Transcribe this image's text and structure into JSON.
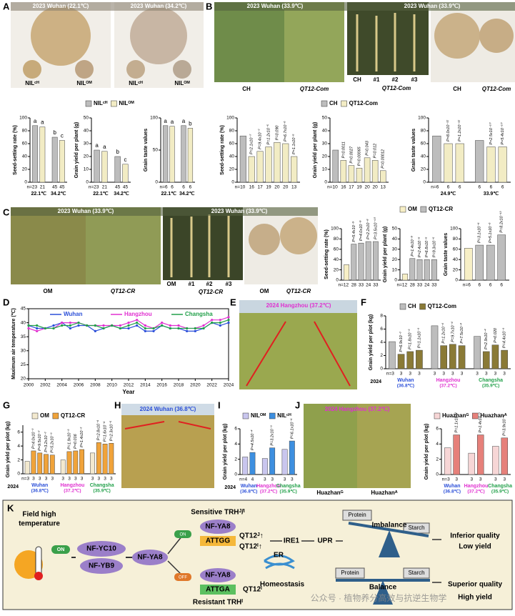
{
  "panel_labels": [
    "A",
    "B",
    "C",
    "D",
    "E",
    "F",
    "G",
    "H",
    "I",
    "J",
    "K"
  ],
  "photos": {
    "A": {
      "titles": [
        "2023 Wuhan (22.1℃)",
        "2023 Wuhan (34.2℃)"
      ],
      "labels": [
        "NILᶜᴴ",
        "NILᴼᴹ",
        "NILᶜᴴ",
        "NILᴼᴹ"
      ]
    },
    "B": {
      "titles": [
        "2023 Wuhan (33.9℃)",
        "2023 Wuhan (33.9℃)"
      ],
      "labels": [
        "CH",
        "QT12-Com",
        "CH",
        "#1",
        "#2",
        "#3",
        "QT12-Com",
        "CH",
        "QT12-Com"
      ]
    },
    "C": {
      "titles": [
        "2023 Wuhan (33.9℃)",
        "2023 Wuhan (33.9℃)"
      ],
      "labels": [
        "OM",
        "QT12-CR",
        "OM",
        "#1",
        "#2",
        "#3",
        "QT12-CR",
        "OM",
        "QT12-CR"
      ]
    },
    "E": {
      "title": "2024 Hangzhou (37.2℃)"
    },
    "H": {
      "title": "2024 Wuhan (36.8℃)"
    },
    "J": {
      "title": "2024 Hangzhou (37.2℃)",
      "labels": [
        "Huazhanᴳ",
        "Huazhanᴬ"
      ]
    }
  },
  "chart_data": [
    {
      "type": "bar",
      "ylabel": "Seed-setting rate (%)",
      "ylim": [
        0,
        100
      ],
      "yticks": [
        0,
        20,
        40,
        60,
        80,
        100
      ],
      "values": [
        88,
        86,
        70,
        65
      ],
      "colors": [
        "#bdbdbd",
        "#f2ecc4",
        "#bdbdbd",
        "#f2ecc4"
      ],
      "annotations": [
        "a",
        "a",
        "b",
        "c"
      ],
      "annotation_style": "plain",
      "n_labels": [
        "n=23",
        "21",
        "45",
        "45"
      ],
      "categories": [
        "22.1℃",
        null,
        "34.2℃",
        null
      ],
      "legend": [
        {
          "name": "NILᶜᴴ",
          "color": "#bdbdbd"
        },
        {
          "name": "NILᴼᴹ",
          "color": "#f2ecc4"
        }
      ]
    },
    {
      "type": "bar",
      "ylabel": "Grain yield per plant (g)",
      "ylim": [
        0,
        50
      ],
      "yticks": [
        0,
        10,
        20,
        30,
        40,
        50
      ],
      "values": [
        25,
        24,
        20,
        14
      ],
      "colors": [
        "#bdbdbd",
        "#f2ecc4",
        "#bdbdbd",
        "#f2ecc4"
      ],
      "annotations": [
        "a",
        "a",
        "b",
        "c"
      ],
      "annotation_style": "plain",
      "n_labels": [
        "n=23",
        "21",
        "45",
        "45"
      ],
      "categories": [
        "22.1℃",
        null,
        "34.2℃",
        null
      ]
    },
    {
      "type": "bar",
      "ylabel": "Grain taste values",
      "ylim": [
        0,
        100
      ],
      "yticks": [
        0,
        50,
        100
      ],
      "values": [
        88,
        87,
        88,
        84
      ],
      "colors": [
        "#bdbdbd",
        "#f2ecc4",
        "#bdbdbd",
        "#f2ecc4"
      ],
      "annotations": [
        "a",
        "a",
        "a",
        "b"
      ],
      "annotation_style": "plain",
      "n_labels": [
        "n=6",
        "6",
        "6",
        "6"
      ],
      "categories": [
        "22.1℃",
        null,
        "34.2℃",
        null
      ]
    },
    {
      "type": "bar",
      "ylabel": "Seed-setting rate (%)",
      "ylim": [
        0,
        100
      ],
      "yticks": [
        0,
        20,
        40,
        60,
        80,
        100
      ],
      "values": [
        72,
        40,
        48,
        55,
        62,
        60,
        40
      ],
      "colors": [
        "#bdbdbd",
        "#f2ecc4",
        "#f2ecc4",
        "#f2ecc4",
        "#f2ecc4",
        "#f2ecc4",
        "#f2ecc4"
      ],
      "annotations": [
        null,
        "P=2.1x10⁻⁷",
        "P=9.4x10⁻⁷",
        "P=1.2x10⁻⁵",
        "P=0.090",
        "P=6.7x10⁻⁶",
        "P=1.1x10⁻⁵"
      ],
      "annotation_style": "rotated",
      "n_labels": [
        "n=10",
        "16",
        "17",
        "19",
        "20",
        "20",
        "13"
      ],
      "legend": [
        {
          "name": "CH",
          "color": "#bdbdbd"
        },
        {
          "name": "QT12-Com",
          "color": "#f2ecc4"
        }
      ]
    },
    {
      "type": "bar",
      "ylabel": "Grain yield per plant (g)",
      "ylim": [
        0,
        50
      ],
      "yticks": [
        0,
        10,
        20,
        30,
        40,
        50
      ],
      "values": [
        25,
        17,
        13,
        11,
        19,
        17,
        9
      ],
      "colors": [
        "#bdbdbd",
        "#f2ecc4",
        "#f2ecc4",
        "#f2ecc4",
        "#f2ecc4",
        "#f2ecc4",
        "#f2ecc4"
      ],
      "annotations": [
        null,
        "P=0.0011",
        "P=0.0027",
        "P=0.00065",
        "P=0.043",
        "P=0.012",
        "P=0.00012"
      ],
      "annotation_style": "rotated",
      "n_labels": [
        "n=10",
        "16",
        "17",
        "19",
        "20",
        "20",
        "13"
      ]
    },
    {
      "type": "bar",
      "ylabel": "Grain taste values",
      "ylim": [
        0,
        100
      ],
      "yticks": [
        0,
        20,
        40,
        60,
        80,
        100
      ],
      "values": [
        72,
        60,
        60,
        65,
        55,
        55
      ],
      "colors": [
        "#bdbdbd",
        "#f2ecc4",
        "#f2ecc4",
        "#bdbdbd",
        "#f2ecc4",
        "#f2ecc4"
      ],
      "annotations": [
        null,
        "P=8.0x10⁻¹²",
        "P=1.2x10⁻¹²",
        null,
        "P=2.5x10⁻¹⁰",
        "P=5.4x10⁻¹⁰"
      ],
      "annotation_style": "rotated",
      "n_labels": [
        "n=6",
        "6",
        "6",
        "6",
        "6",
        "6"
      ],
      "categories": [
        "24.9℃",
        null,
        null,
        "33.9℃",
        null,
        null
      ]
    },
    {
      "type": "bar",
      "ylabel": "Seed-setting rate (%)",
      "ylim": [
        0,
        100
      ],
      "yticks": [
        0,
        20,
        40,
        60,
        80,
        100
      ],
      "values": [
        30,
        70,
        72,
        75,
        75
      ],
      "colors": [
        "#f7efc6",
        "#bdbdbd",
        "#bdbdbd",
        "#bdbdbd",
        "#bdbdbd"
      ],
      "annotations": [
        null,
        "P=5.4x10⁻⁹",
        "P=4.0x10⁻⁹",
        "P=2.2x10⁻⁸",
        "P=3.5x10⁻¹⁰"
      ],
      "annotation_style": "rotated",
      "n_labels": [
        "n=12",
        "28",
        "33",
        "24",
        "33"
      ],
      "legend": [
        {
          "name": "OM",
          "color": "#f7efc6"
        },
        {
          "name": "QT12-CR",
          "color": "#bdbdbd"
        }
      ]
    },
    {
      "type": "bar",
      "ylabel": "Grain yield per plant (g)",
      "ylim": [
        0,
        50
      ],
      "yticks": [
        0,
        10,
        20,
        30,
        40,
        50
      ],
      "values": [
        6,
        21,
        20,
        20,
        20
      ],
      "colors": [
        "#f7efc6",
        "#bdbdbd",
        "#bdbdbd",
        "#bdbdbd",
        "#bdbdbd"
      ],
      "annotations": [
        null,
        "P=1.4x10⁻⁹",
        "P=2.4x10⁻⁵",
        "P=6.8x10⁻⁵",
        "P=9.3x10⁻⁵"
      ],
      "annotation_style": "rotated",
      "n_labels": [
        "n=12",
        "28",
        "33",
        "24",
        "33"
      ]
    },
    {
      "type": "bar",
      "ylabel": "Grain taste values",
      "ylim": [
        0,
        100
      ],
      "yticks": [
        0,
        20,
        40,
        60,
        80,
        100
      ],
      "values": [
        62,
        68,
        68,
        88
      ],
      "colors": [
        "#f7efc6",
        "#bdbdbd",
        "#bdbdbd",
        "#bdbdbd"
      ],
      "annotations": [
        null,
        "P=3.1x10⁻⁶",
        "P=5.1x10⁻⁶",
        "P=8.2x10⁻¹³"
      ],
      "annotation_style": "rotated",
      "n_labels": [
        "n=6",
        "6",
        "6",
        "6"
      ]
    },
    {
      "type": "line",
      "ylabel": "Maximum air temperature (℃)",
      "xlabel": "Year",
      "xlim": [
        2000,
        2024
      ],
      "xticks": [
        2000,
        2002,
        2004,
        2006,
        2008,
        2010,
        2012,
        2014,
        2016,
        2018,
        2020,
        2022,
        2024
      ],
      "ylim": [
        20,
        45
      ],
      "yticks": [
        20,
        25,
        30,
        35,
        40,
        45
      ],
      "x": [
        2000,
        2001,
        2002,
        2003,
        2004,
        2005,
        2006,
        2007,
        2008,
        2009,
        2010,
        2011,
        2012,
        2013,
        2014,
        2015,
        2016,
        2017,
        2018,
        2019,
        2020,
        2021,
        2022,
        2023,
        2024
      ],
      "series": [
        {
          "name": "Wuhan",
          "color": "#2b4fd8",
          "values": [
            39,
            38,
            38,
            39,
            40,
            38,
            39,
            39,
            37,
            38,
            39,
            38,
            38,
            39,
            37,
            37,
            39,
            38,
            38,
            37,
            37,
            38,
            40,
            39,
            40
          ]
        },
        {
          "name": "Hangzhou",
          "color": "#e030d0",
          "values": [
            38,
            37,
            38,
            38,
            40,
            40,
            40,
            39,
            39,
            39,
            39,
            39,
            40,
            41,
            39,
            38,
            40,
            39,
            39,
            38,
            38,
            39,
            41,
            41,
            42
          ]
        },
        {
          "name": "Changsha",
          "color": "#22a04a",
          "values": [
            39,
            39,
            38,
            38,
            39,
            39,
            40,
            39,
            39,
            38,
            39,
            38,
            39,
            40,
            38,
            38,
            39,
            38,
            38,
            38,
            38,
            38,
            40,
            40,
            41
          ]
        }
      ]
    },
    {
      "type": "bar",
      "ylabel": "Grain yield per plot (kg)",
      "ylim": [
        0,
        8
      ],
      "yticks": [
        0,
        2,
        4,
        6,
        8
      ],
      "values": [
        4.1,
        2.2,
        2.6,
        2.8,
        6.5,
        3.5,
        3.7,
        3.5,
        4.9,
        2.6,
        3.6,
        2.8
      ],
      "colors": [
        "#bdbdbd",
        "#8a7a36",
        "#8a7a36",
        "#8a7a36",
        "#bdbdbd",
        "#8a7a36",
        "#8a7a36",
        "#8a7a36",
        "#bdbdbd",
        "#8a7a36",
        "#8a7a36",
        "#8a7a36"
      ],
      "annotations": [
        null,
        "P=6.9x10⁻³",
        "P=1.8x10⁻³",
        "P=1.1x10⁻³",
        null,
        "P=1.2x10⁻⁴",
        "P=9.7x10⁻⁴",
        "P=7.5x10⁻⁴",
        null,
        "P=2.9x10⁻⁴",
        "P=0.020",
        "P=4.4x10⁻³"
      ],
      "annotation_style": "rotated",
      "n_labels": [
        "n=3",
        "3",
        "3",
        "3",
        "3",
        "3",
        "3",
        "3",
        "3",
        "3",
        "3",
        "3"
      ],
      "categories": [
        "Wuhan",
        null,
        null,
        null,
        "Hangzhou",
        null,
        null,
        null,
        "Changsha",
        null,
        null,
        null
      ],
      "subcategories": [
        "(36.8℃)",
        null,
        null,
        null,
        "(37.2℃)",
        null,
        null,
        null,
        "(35.9℃)",
        null,
        null,
        null
      ],
      "category_colors": [
        "#2b4fd8",
        null,
        null,
        null,
        "#e030d0",
        null,
        null,
        null,
        "#22a04a",
        null,
        null,
        null
      ],
      "row_label": "2024",
      "legend": [
        {
          "name": "CH",
          "color": "#bdbdbd"
        },
        {
          "name": "QT12-Com",
          "color": "#8a7a36"
        }
      ]
    },
    {
      "type": "bar",
      "ylabel": "Grain yield per plot (kg)",
      "ylim": [
        0,
        7
      ],
      "yticks": [
        0,
        2,
        4,
        6
      ],
      "values": [
        1.8,
        3.3,
        3.0,
        2.8,
        2.7,
        2.0,
        3.2,
        3.3,
        3.5,
        3.0,
        4.5,
        4.3,
        4.4
      ],
      "colors": [
        "#f3e9cf",
        "#f0a33a",
        "#f0a33a",
        "#f0a33a",
        "#f0a33a",
        "#f3e9cf",
        "#f0a33a",
        "#f0a33a",
        "#f0a33a",
        "#f3e9cf",
        "#f0a33a",
        "#f0a33a",
        "#f0a33a"
      ],
      "annotations": [
        null,
        "P=4.0x10⁻³",
        "P=9.5x10⁻³",
        "P=3.2x10⁻³",
        "P=5.2x10⁻³",
        null,
        "P=1.9x10⁻³",
        "P=0.016",
        "P=1.4x10⁻³",
        null,
        "P=2.8x10⁻⁶",
        "P=1.6x10⁻⁶",
        "P=2.3x10⁻⁵"
      ],
      "annotation_style": "rotated",
      "n_labels": [
        "n=3",
        "3",
        "3",
        "3",
        "3",
        "3",
        "3",
        "3",
        "3",
        "3",
        "3",
        "3",
        "3"
      ],
      "categories": [
        "Wuhan",
        null,
        null,
        null,
        null,
        "Hangzhou",
        null,
        null,
        null,
        "Changsha",
        null,
        null,
        null
      ],
      "subcategories": [
        "(36.8℃)",
        null,
        null,
        null,
        null,
        "(37.2℃)",
        null,
        null,
        null,
        "(35.9℃)",
        null,
        null,
        null
      ],
      "category_colors": [
        "#2b4fd8",
        null,
        null,
        null,
        null,
        "#e030d0",
        null,
        null,
        null,
        "#22a04a",
        null,
        null,
        null
      ],
      "row_label": "2024",
      "legend": [
        {
          "name": "OM",
          "color": "#f3e9cf"
        },
        {
          "name": "QT12-CR",
          "color": "#f0a33a"
        }
      ]
    },
    {
      "type": "bar",
      "ylabel": "Grain yield per plot (kg)",
      "ylim": [
        0,
        6
      ],
      "yticks": [
        0,
        2,
        4,
        6
      ],
      "values": [
        2.3,
        2.9,
        2.1,
        3.5,
        3.3,
        4.4
      ],
      "colors": [
        "#c9c6ee",
        "#3d8fe0",
        "#c9c6ee",
        "#3d8fe0",
        "#c9c6ee",
        "#3d8fe0"
      ],
      "annotations": [
        null,
        "P=4.5x10⁻⁴",
        null,
        "P=3.2x10⁻³",
        null,
        "P=6.1x10⁻⁶"
      ],
      "annotation_style": "rotated",
      "n_labels": [
        "n=4",
        "4",
        "3",
        "3",
        "3",
        "3"
      ],
      "categories": [
        "Wuhan",
        null,
        "Hangzhou",
        null,
        "Changsha",
        null
      ],
      "subcategories": [
        "(36.8℃)",
        null,
        "(37.2℃)",
        null,
        "(35.9℃)",
        null
      ],
      "category_colors": [
        "#2b4fd8",
        null,
        "#e030d0",
        null,
        "#22a04a",
        null
      ],
      "row_label": "2024",
      "legend": [
        {
          "name": "NILᴼᴹ",
          "color": "#c9c6ee"
        },
        {
          "name": "NILᶜᴴ",
          "color": "#3d8fe0"
        }
      ]
    },
    {
      "type": "bar",
      "ylabel": "Grain yield per plot (kg)",
      "ylim": [
        0,
        6
      ],
      "yticks": [
        0,
        2,
        4,
        6
      ],
      "values": [
        3.5,
        5.2,
        2.8,
        5.2,
        3.7,
        4.8
      ],
      "colors": [
        "#f7d6d6",
        "#e6807a",
        "#f7d6d6",
        "#e6807a",
        "#f7d6d6",
        "#e6807a"
      ],
      "annotations": [
        null,
        "P=1.1x10⁻³",
        null,
        "P=1.4x10⁻³",
        null,
        "P=3.9x10⁻⁵"
      ],
      "annotation_style": "rotated",
      "n_labels": [
        "n=3",
        "3",
        "3",
        "3",
        "3",
        "3"
      ],
      "categories": [
        "Wuhan",
        null,
        "Hangzhou",
        null,
        "Changsha",
        null
      ],
      "subcategories": [
        "(36.8℃)",
        null,
        "(37.2℃)",
        null,
        "(35.9℃)",
        null
      ],
      "category_colors": [
        "#2b4fd8",
        null,
        "#e030d0",
        null,
        "#22a04a",
        null
      ],
      "legend": [
        {
          "name": "Huazhanᴳ",
          "color": "#f7d6d6"
        },
        {
          "name": "Huazhanᴬ",
          "color": "#e6807a"
        }
      ]
    }
  ],
  "diagram": {
    "field": [
      "Field high",
      "temperature"
    ],
    "on": "ON",
    "off": "OFF",
    "nf_yc10": "NF-YC10",
    "nf_yb9": "NF-YB9",
    "nf_ya8": "NF-YA8",
    "sensitive": "Sensitive TRHᴶ/ᴵ",
    "attgg": "ATTGG",
    "qt12_up": [
      "QT12ᴶ↑",
      "QT12ᴵ↑"
    ],
    "ire1": "IRE1",
    "upr": "UPR",
    "protein": "Protein",
    "starch": "Starch",
    "imbalance": "Imbalance",
    "inferior": [
      "Inferior quality",
      "Low yield"
    ],
    "er": "ER",
    "homeostasis": "Homeostasis",
    "attga": "ATTGA",
    "resistant": "Resistant TRHᴵ",
    "qt12i": "QT12ᴵ",
    "balance": "Balance",
    "superior": [
      "Superior quality",
      "High yield"
    ]
  },
  "watermark": "公众号 · 植物养分高效与抗逆生物学"
}
